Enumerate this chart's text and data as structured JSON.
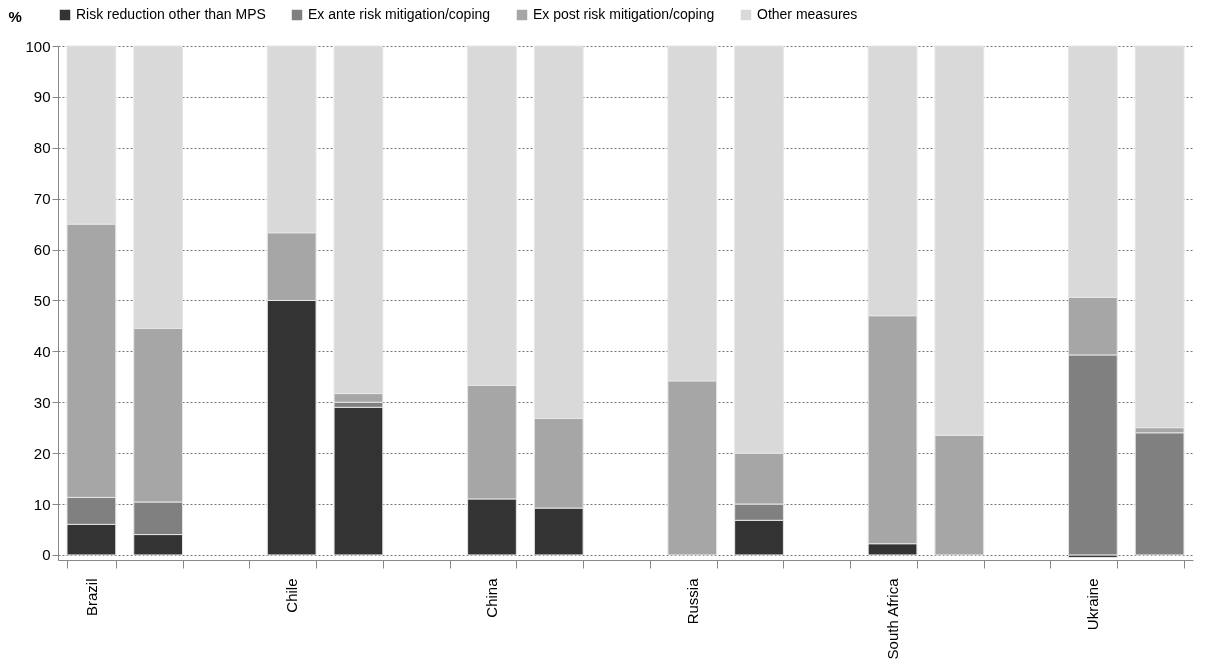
{
  "chart_data": {
    "type": "bar",
    "stacked": true,
    "ylabel": "%",
    "ylim": [
      -1,
      100
    ],
    "yticks": [
      0,
      10,
      20,
      30,
      40,
      50,
      60,
      70,
      80,
      90,
      100
    ],
    "grid": "y",
    "legend": "top",
    "categories": [
      "Brazil",
      null,
      null,
      "Chile",
      null,
      null,
      "China",
      null,
      null,
      "Russia",
      null,
      null,
      "South Africa",
      null,
      null,
      "Ukraine",
      null
    ],
    "series": [
      {
        "name": "Risk reduction other than MPS",
        "color": "#333333",
        "values": [
          6,
          4,
          null,
          50,
          29,
          null,
          11,
          9.2,
          null,
          null,
          6.8,
          null,
          2.2,
          null,
          null,
          -0.5,
          null
        ]
      },
      {
        "name": "Ex ante risk mitigation/coping",
        "color": "#808080",
        "values": [
          5.3,
          6.4,
          null,
          null,
          1,
          null,
          null,
          null,
          null,
          null,
          3.2,
          null,
          null,
          null,
          null,
          39.3,
          24
        ]
      },
      {
        "name": "Ex post risk mitigation/coping",
        "color": "#a6a6a6",
        "values": [
          53.7,
          34.1,
          null,
          13.3,
          1.7,
          null,
          22.3,
          17.6,
          null,
          34.2,
          10,
          null,
          44.8,
          23.5,
          null,
          11.3,
          1
        ]
      },
      {
        "name": "Other measures",
        "color": "#d9d9d9",
        "values": [
          35,
          55.5,
          null,
          36.7,
          68.3,
          null,
          66.7,
          73.2,
          null,
          65.8,
          80,
          null,
          53,
          76.5,
          null,
          49.4,
          75
        ]
      }
    ]
  }
}
